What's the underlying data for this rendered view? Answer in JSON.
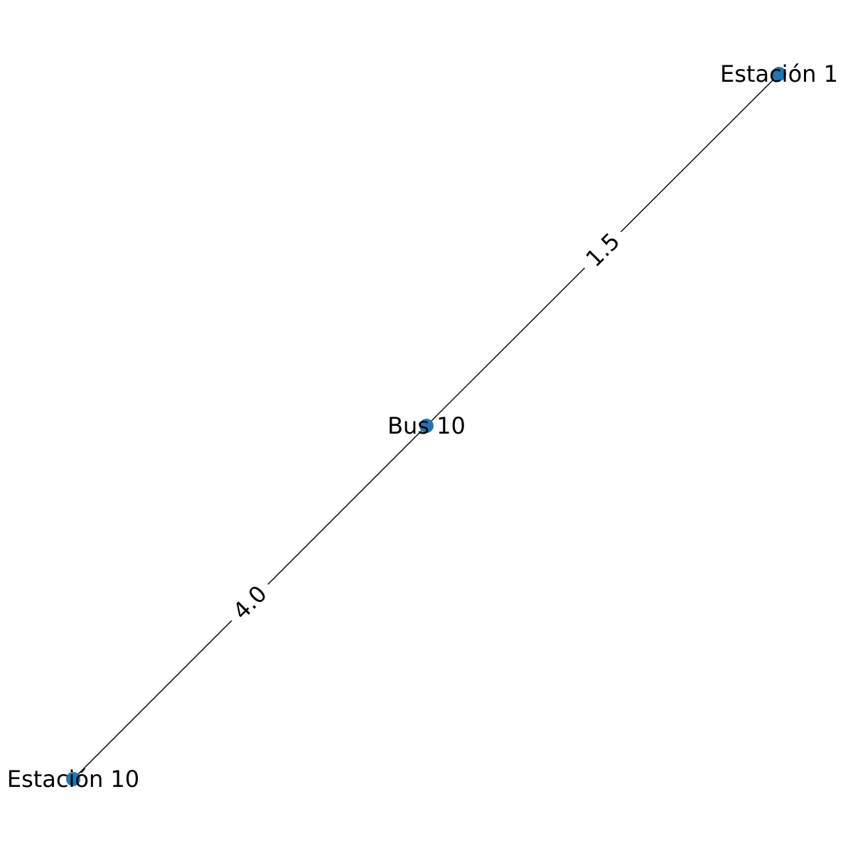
{
  "graph": {
    "node_color": "#1f77b4",
    "edge_color": "#000000",
    "nodes": [
      {
        "id": "n1",
        "label": "Estación 1"
      },
      {
        "id": "n2",
        "label": "Bus 10"
      },
      {
        "id": "n3",
        "label": "Estación 10"
      }
    ],
    "edges": [
      {
        "id": "e1",
        "source": "n2",
        "target": "n1",
        "label": "1.5"
      },
      {
        "id": "e2",
        "source": "n2",
        "target": "n3",
        "label": "4.0"
      }
    ]
  }
}
